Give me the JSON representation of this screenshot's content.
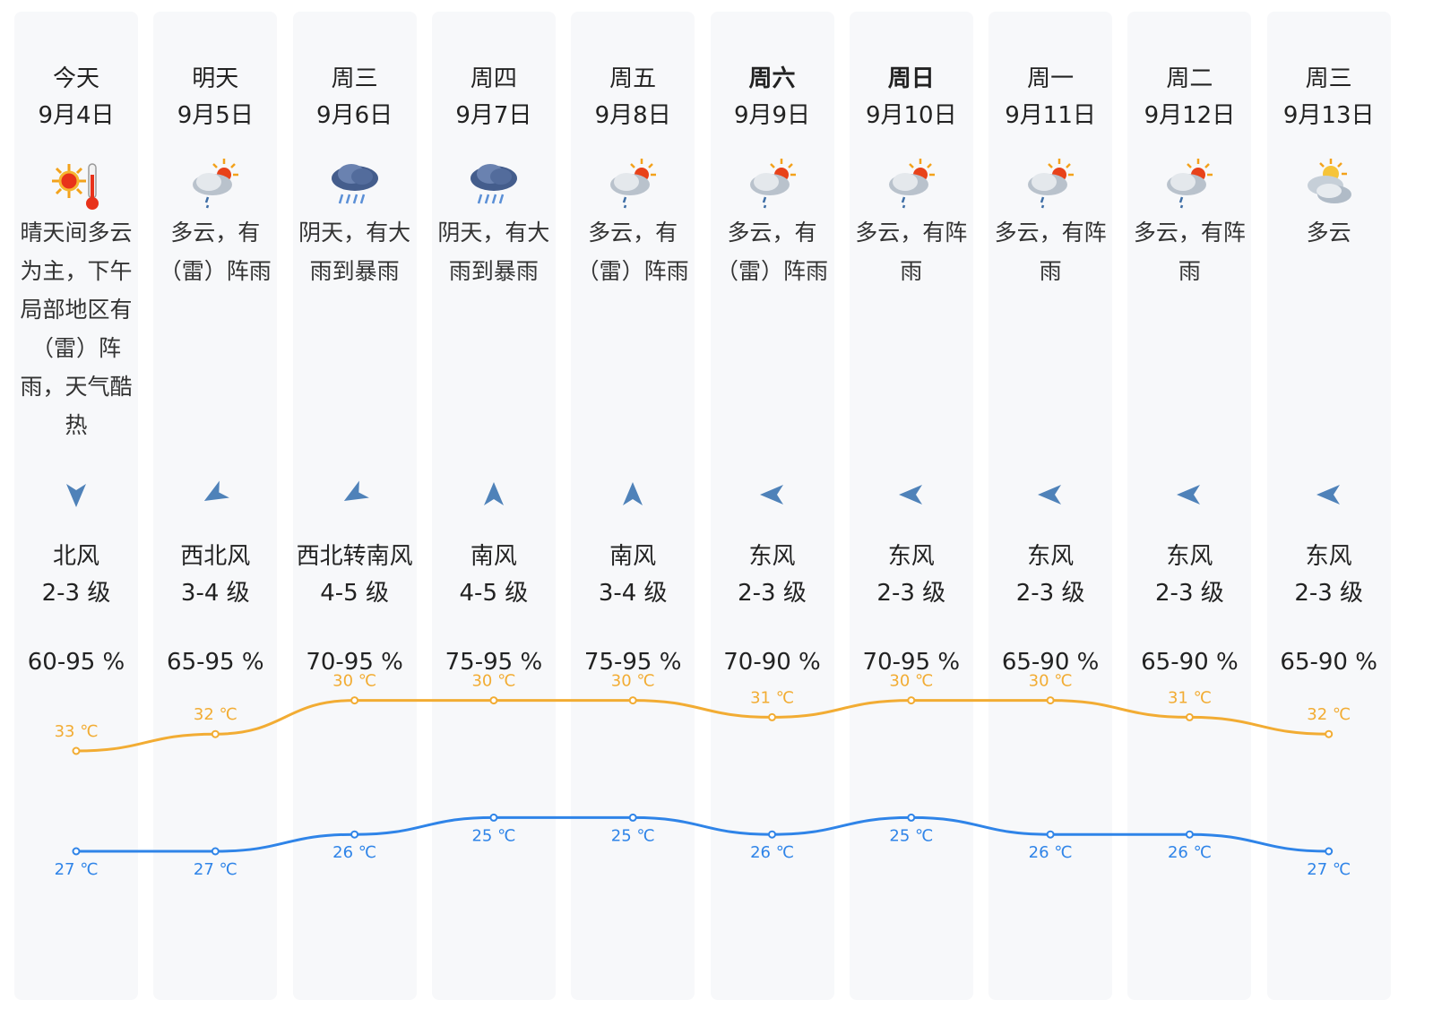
{
  "colors": {
    "high": "#f2ac33",
    "low": "#2f84e8",
    "arrow": "#4f82b9"
  },
  "days": [
    {
      "name": "今天",
      "date": "9月4日",
      "icon": "sunny-hot-icon",
      "desc": "晴天间多云为主，下午局部地区有（雷）阵雨，天气酷热",
      "wind_arrow": "arrow-down",
      "wind_dir": "北风",
      "wind_level": "2-3 级",
      "humidity": "60-95 %",
      "weekend": false
    },
    {
      "name": "明天",
      "date": "9月5日",
      "icon": "partly-cloudy-shower-icon",
      "desc": "多云，有（雷）阵雨",
      "wind_arrow": "arrow-down-left",
      "wind_dir": "西北风",
      "wind_level": "3-4 级",
      "humidity": "65-95 %",
      "weekend": false
    },
    {
      "name": "周三",
      "date": "9月6日",
      "icon": "heavy-rain-icon",
      "desc": "阴天，有大雨到暴雨",
      "wind_arrow": "arrow-down-left",
      "wind_dir": "西北转南风",
      "wind_level": "4-5 级",
      "humidity": "70-95 %",
      "weekend": false
    },
    {
      "name": "周四",
      "date": "9月7日",
      "icon": "heavy-rain-icon",
      "desc": "阴天，有大雨到暴雨",
      "wind_arrow": "arrow-up",
      "wind_dir": "南风",
      "wind_level": "4-5 级",
      "humidity": "75-95 %",
      "weekend": false
    },
    {
      "name": "周五",
      "date": "9月8日",
      "icon": "partly-cloudy-shower-icon",
      "desc": "多云，有（雷）阵雨",
      "wind_arrow": "arrow-up",
      "wind_dir": "南风",
      "wind_level": "3-4 级",
      "humidity": "75-95 %",
      "weekend": false
    },
    {
      "name": "周六",
      "date": "9月9日",
      "icon": "partly-cloudy-shower-icon",
      "desc": "多云，有（雷）阵雨",
      "wind_arrow": "arrow-left",
      "wind_dir": "东风",
      "wind_level": "2-3 级",
      "humidity": "70-90 %",
      "weekend": true
    },
    {
      "name": "周日",
      "date": "9月10日",
      "icon": "partly-cloudy-shower-icon",
      "desc": "多云，有阵雨",
      "wind_arrow": "arrow-left",
      "wind_dir": "东风",
      "wind_level": "2-3 级",
      "humidity": "70-95 %",
      "weekend": true
    },
    {
      "name": "周一",
      "date": "9月11日",
      "icon": "partly-cloudy-shower-icon",
      "desc": "多云，有阵雨",
      "wind_arrow": "arrow-left",
      "wind_dir": "东风",
      "wind_level": "2-3 级",
      "humidity": "65-90 %",
      "weekend": false
    },
    {
      "name": "周二",
      "date": "9月12日",
      "icon": "partly-cloudy-shower-icon",
      "desc": "多云，有阵雨",
      "wind_arrow": "arrow-left",
      "wind_dir": "东风",
      "wind_level": "2-3 级",
      "humidity": "65-90 %",
      "weekend": false
    },
    {
      "name": "周三",
      "date": "9月13日",
      "icon": "partly-cloudy-icon",
      "desc": "多云",
      "wind_arrow": "arrow-left",
      "wind_dir": "东风",
      "wind_level": "2-3 级",
      "humidity": "65-90 %",
      "weekend": false
    }
  ],
  "temperature": {
    "unit": "℃",
    "high": [
      33,
      32,
      30,
      30,
      30,
      31,
      30,
      30,
      31,
      32
    ],
    "low": [
      27,
      27,
      26,
      25,
      25,
      26,
      25,
      26,
      26,
      27
    ]
  }
}
